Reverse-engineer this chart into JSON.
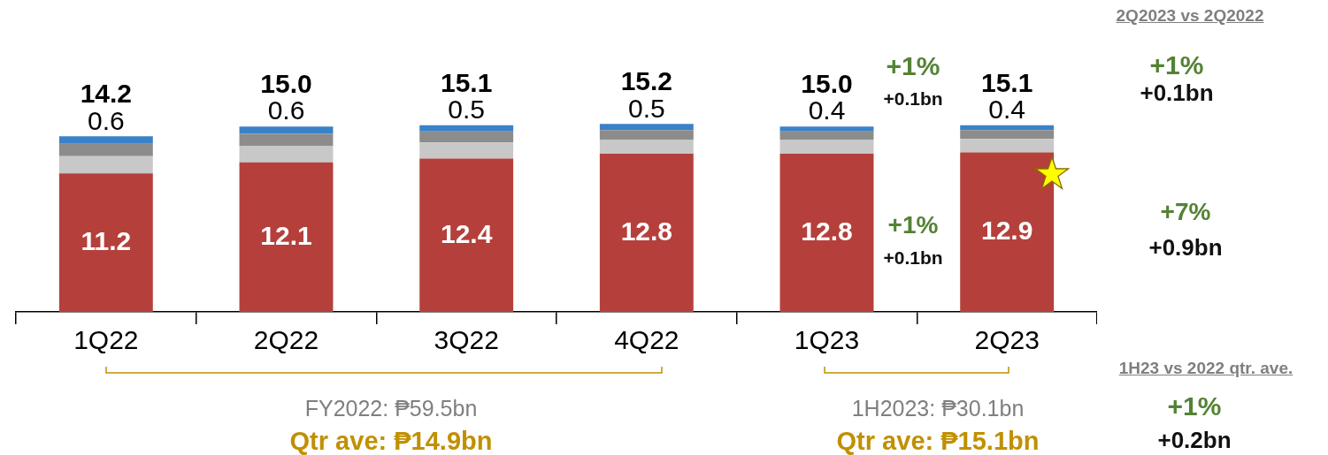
{
  "chart_data": {
    "type": "bar",
    "stacked": true,
    "categories": [
      "1Q22",
      "2Q22",
      "3Q22",
      "4Q22",
      "1Q23",
      "2Q23"
    ],
    "series": [
      {
        "color": "#b5403b",
        "values": [
          11.2,
          12.1,
          12.4,
          12.8,
          12.8,
          12.9
        ],
        "value_labels": [
          "11.2",
          "12.1",
          "12.4",
          "12.8",
          "12.8",
          "12.9"
        ]
      },
      {
        "color": "#c8c8c8",
        "values": [
          1.4,
          1.3,
          1.3,
          1.1,
          1.1,
          1.1
        ]
      },
      {
        "color": "#8c8c8c",
        "values": [
          1.0,
          1.0,
          0.9,
          0.8,
          0.7,
          0.7
        ]
      },
      {
        "color": "#3a82c8",
        "values": [
          0.6,
          0.6,
          0.5,
          0.5,
          0.4,
          0.4
        ],
        "value_labels": [
          "0.6",
          "0.6",
          "0.5",
          "0.5",
          "0.4",
          "0.4"
        ]
      }
    ],
    "totals": [
      "14.2",
      "15.0",
      "15.1",
      "15.2",
      "15.0",
      "15.1"
    ],
    "legend": false,
    "grid": false,
    "annotations": [
      "+1%",
      "+0.1bn",
      "+1%",
      "+0.1bn",
      "2Q2023 vs 2Q2022",
      "+1%",
      "+0.1bn",
      "+7%",
      "+0.9bn",
      "FY2022: ₱59.5bn",
      "Qtr ave: ₱14.9bn",
      "1H2023: ₱30.1bn",
      "Qtr ave: ₱15.1bn",
      "1H23 vs 2022 qtr. ave.",
      "+1%",
      "+0.2bn"
    ]
  }
}
